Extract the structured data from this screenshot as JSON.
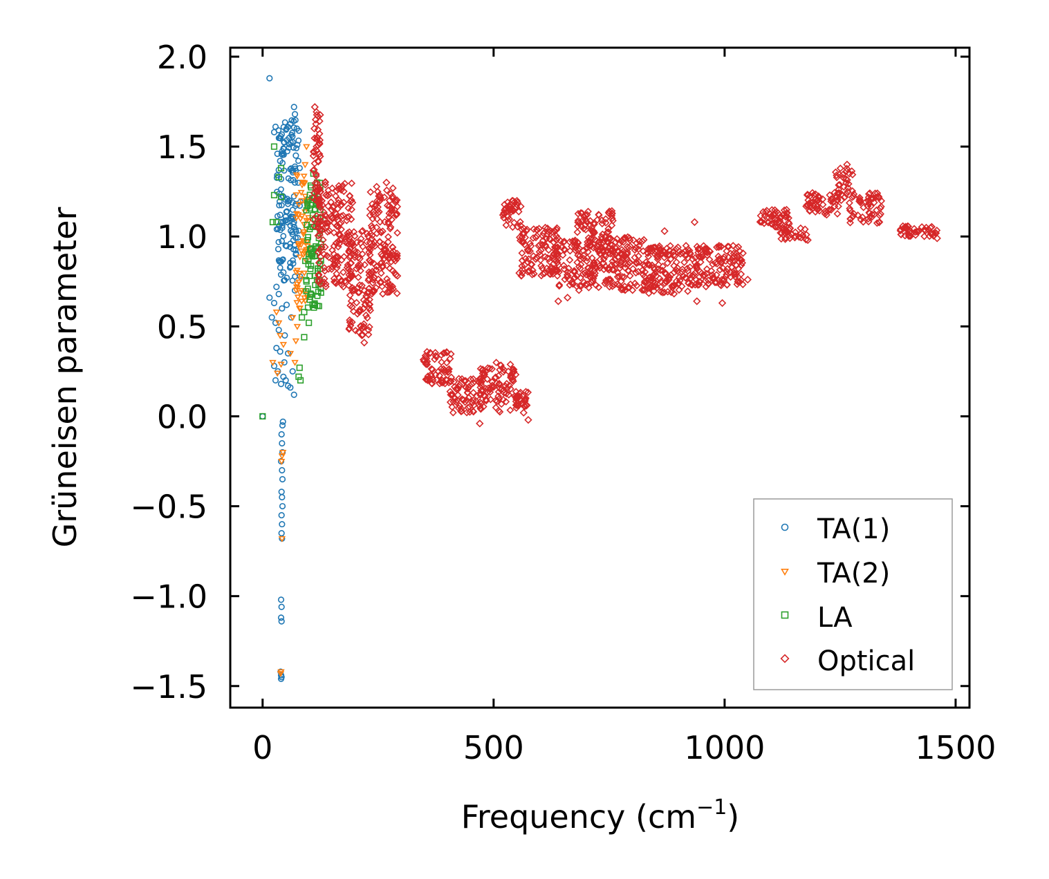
{
  "chart_data": {
    "type": "scatter",
    "title": "",
    "xlabel": "Frequency (cm",
    "xlabel_sup": "−1",
    "xlabel_close": ")",
    "ylabel": "Grüneisen parameter",
    "xlim": [
      -70,
      1530
    ],
    "ylim": [
      -1.62,
      2.05
    ],
    "xticks": [
      0,
      500,
      1000,
      1500
    ],
    "xtick_labels": [
      "0",
      "500",
      "1000",
      "1500"
    ],
    "yticks": [
      -1.5,
      -1.0,
      -0.5,
      0.0,
      0.5,
      1.0,
      1.5,
      2.0
    ],
    "ytick_labels": [
      "−1.5",
      "−1.0",
      "−0.5",
      "0.0",
      "0.5",
      "1.0",
      "1.5",
      "2.0"
    ],
    "legend_position": "bottom-right",
    "series": [
      {
        "name": "TA(1)",
        "legend": "TA(1)",
        "marker": "circle",
        "color": "#1f77b4",
        "points": [
          [
            15,
            1.88
          ],
          [
            25,
            1.58
          ],
          [
            28,
            1.61
          ],
          [
            32,
            1.46
          ],
          [
            35,
            1.37
          ],
          [
            38,
            1.42
          ],
          [
            40,
            1.32
          ],
          [
            36,
            1.06
          ],
          [
            38,
            1.12
          ],
          [
            40,
            1.08
          ],
          [
            34,
            0.93
          ],
          [
            38,
            0.86
          ],
          [
            30,
            0.72
          ],
          [
            35,
            0.68
          ],
          [
            15,
            0.66
          ],
          [
            25,
            0.63
          ],
          [
            20,
            0.55
          ],
          [
            28,
            0.52
          ],
          [
            35,
            0.48
          ],
          [
            30,
            0.38
          ],
          [
            38,
            0.36
          ],
          [
            25,
            0.28
          ],
          [
            33,
            0.25
          ],
          [
            28,
            0.2
          ],
          [
            40,
            0.18
          ],
          [
            45,
            0.22
          ],
          [
            50,
            0.2
          ],
          [
            55,
            0.17
          ],
          [
            60,
            0.16
          ],
          [
            68,
            0.12
          ],
          [
            65,
            0.25
          ],
          [
            55,
            0.35
          ],
          [
            48,
            0.45
          ],
          [
            62,
            0.55
          ],
          [
            70,
            0.7
          ],
          [
            72,
            0.9
          ],
          [
            66,
            1.1
          ],
          [
            70,
            1.3
          ],
          [
            72,
            1.45
          ],
          [
            74,
            1.6
          ],
          [
            68,
            1.72
          ],
          [
            70,
            1.68
          ],
          [
            45,
            0.8
          ],
          [
            50,
            0.95
          ],
          [
            58,
            1.2
          ],
          [
            42,
            0.6
          ],
          [
            52,
            0.62
          ],
          [
            47,
            0.3
          ],
          [
            0,
            0.0
          ],
          [
            44,
            -0.03
          ],
          [
            43,
            -0.05
          ],
          [
            41,
            -0.1
          ],
          [
            42,
            -0.15
          ],
          [
            43,
            -0.2
          ],
          [
            40,
            -0.25
          ],
          [
            42,
            -0.3
          ],
          [
            43,
            -0.35
          ],
          [
            41,
            -0.42
          ],
          [
            42,
            -0.45
          ],
          [
            43,
            -0.5
          ],
          [
            41,
            -0.55
          ],
          [
            42,
            -0.6
          ],
          [
            41,
            -0.65
          ],
          [
            42,
            -0.68
          ],
          [
            40,
            -1.02
          ],
          [
            41,
            -1.06
          ],
          [
            40,
            -1.12
          ],
          [
            41,
            -1.14
          ],
          [
            39,
            -1.42
          ],
          [
            40,
            -1.44
          ],
          [
            41,
            -1.45
          ],
          [
            40,
            -1.46
          ]
        ],
        "bands": [
          {
            "x_min": 30,
            "x_max": 82,
            "y_top": 1.65,
            "y_bottom": 0.75,
            "density": 140
          }
        ]
      },
      {
        "name": "TA(2)",
        "legend": "TA(2)",
        "marker": "triangle-down",
        "color": "#ff7f0e",
        "points": [
          [
            30,
            0.58
          ],
          [
            35,
            0.52
          ],
          [
            22,
            0.3
          ],
          [
            32,
            0.24
          ],
          [
            40,
            0.29
          ],
          [
            38,
            0.45
          ],
          [
            45,
            0.4
          ],
          [
            60,
            0.35
          ],
          [
            70,
            0.3
          ],
          [
            75,
            0.5
          ],
          [
            80,
            0.6
          ],
          [
            72,
            0.42
          ],
          [
            85,
            0.7
          ],
          [
            88,
            0.9
          ],
          [
            85,
            1.2
          ],
          [
            90,
            1.3
          ],
          [
            92,
            1.4
          ],
          [
            95,
            1.5
          ],
          [
            82,
            1.1
          ],
          [
            78,
            0.95
          ],
          [
            65,
            0.55
          ],
          [
            44,
            -0.2
          ],
          [
            42,
            -0.22
          ],
          [
            41,
            -0.25
          ],
          [
            42,
            -0.68
          ],
          [
            39,
            -1.43
          ],
          [
            40,
            -1.42
          ]
        ],
        "bands": [
          {
            "x_min": 72,
            "x_max": 100,
            "y_top": 1.35,
            "y_bottom": 0.6,
            "density": 60
          }
        ]
      },
      {
        "name": "LA",
        "legend": "LA",
        "marker": "square",
        "color": "#2ca02c",
        "points": [
          [
            0,
            0.0
          ],
          [
            25,
            1.5
          ],
          [
            35,
            1.33
          ],
          [
            40,
            1.38
          ],
          [
            25,
            1.23
          ],
          [
            22,
            1.08
          ],
          [
            30,
            1.08
          ],
          [
            40,
            1.22
          ],
          [
            85,
            0.55
          ],
          [
            90,
            0.58
          ],
          [
            100,
            0.52
          ],
          [
            90,
            0.44
          ],
          [
            80,
            0.27
          ],
          [
            78,
            0.22
          ],
          [
            82,
            0.2
          ],
          [
            95,
            0.75
          ],
          [
            105,
            0.9
          ],
          [
            110,
            1.35
          ],
          [
            118,
            1.3
          ],
          [
            120,
            1.1
          ]
        ],
        "bands": [
          {
            "x_min": 92,
            "x_max": 128,
            "y_top": 1.3,
            "y_bottom": 0.6,
            "density": 90
          }
        ]
      },
      {
        "name": "Optical",
        "legend": "Optical",
        "marker": "diamond",
        "color": "#d62728",
        "points": [
          [
            113,
            1.72
          ],
          [
            115,
            1.65
          ],
          [
            118,
            1.55
          ],
          [
            112,
            1.6
          ],
          [
            116,
            1.48
          ],
          [
            120,
            1.42
          ],
          [
            220,
            0.41
          ],
          [
            215,
            0.45
          ],
          [
            268,
            1.3
          ],
          [
            275,
            1.2
          ],
          [
            565,
            0.02
          ],
          [
            575,
            -0.02
          ],
          [
            470,
            -0.04
          ],
          [
            935,
            1.08
          ],
          [
            870,
            1.03
          ],
          [
            940,
            0.64
          ],
          [
            995,
            0.63
          ],
          [
            1180,
            0.98
          ],
          [
            1265,
            1.4
          ],
          [
            1270,
            1.35
          ],
          [
            1460,
            0.99
          ],
          [
            1050,
            0.76
          ],
          [
            640,
            0.64
          ],
          [
            660,
            0.66
          ]
        ],
        "bands": [
          {
            "x_min": 108,
            "x_max": 125,
            "y_top": 1.7,
            "y_bottom": 1.0,
            "density": 50
          },
          {
            "x_min": 120,
            "x_max": 195,
            "y_top": 1.32,
            "y_bottom": 0.72,
            "density": 170
          },
          {
            "x_min": 185,
            "x_max": 235,
            "y_top": 1.05,
            "y_bottom": 0.45,
            "density": 110
          },
          {
            "x_min": 230,
            "x_max": 292,
            "y_top": 1.28,
            "y_bottom": 0.68,
            "density": 150
          },
          {
            "x_min": 345,
            "x_max": 410,
            "y_top": 0.36,
            "y_bottom": 0.18,
            "density": 60
          },
          {
            "x_min": 405,
            "x_max": 475,
            "y_top": 0.22,
            "y_bottom": 0.02,
            "density": 70
          },
          {
            "x_min": 470,
            "x_max": 550,
            "y_top": 0.3,
            "y_bottom": 0.02,
            "density": 90
          },
          {
            "x_min": 545,
            "x_max": 575,
            "y_top": 0.15,
            "y_bottom": 0.05,
            "density": 30
          },
          {
            "x_min": 520,
            "x_max": 560,
            "y_top": 1.2,
            "y_bottom": 1.05,
            "density": 40
          },
          {
            "x_min": 555,
            "x_max": 640,
            "y_top": 1.05,
            "y_bottom": 0.78,
            "density": 110
          },
          {
            "x_min": 630,
            "x_max": 720,
            "y_top": 0.98,
            "y_bottom": 0.7,
            "density": 110
          },
          {
            "x_min": 680,
            "x_max": 760,
            "y_top": 1.15,
            "y_bottom": 0.9,
            "density": 80
          },
          {
            "x_min": 720,
            "x_max": 830,
            "y_top": 1.0,
            "y_bottom": 0.7,
            "density": 150
          },
          {
            "x_min": 830,
            "x_max": 930,
            "y_top": 0.95,
            "y_bottom": 0.68,
            "density": 140
          },
          {
            "x_min": 930,
            "x_max": 1040,
            "y_top": 0.95,
            "y_bottom": 0.72,
            "density": 130
          },
          {
            "x_min": 1075,
            "x_max": 1140,
            "y_top": 1.15,
            "y_bottom": 1.05,
            "density": 50
          },
          {
            "x_min": 1120,
            "x_max": 1180,
            "y_top": 1.05,
            "y_bottom": 0.98,
            "density": 30
          },
          {
            "x_min": 1175,
            "x_max": 1250,
            "y_top": 1.25,
            "y_bottom": 1.12,
            "density": 55
          },
          {
            "x_min": 1240,
            "x_max": 1280,
            "y_top": 1.38,
            "y_bottom": 1.2,
            "density": 35
          },
          {
            "x_min": 1270,
            "x_max": 1340,
            "y_top": 1.25,
            "y_bottom": 1.07,
            "density": 55
          },
          {
            "x_min": 1380,
            "x_max": 1460,
            "y_top": 1.06,
            "y_bottom": 1.0,
            "density": 45
          }
        ]
      }
    ]
  }
}
